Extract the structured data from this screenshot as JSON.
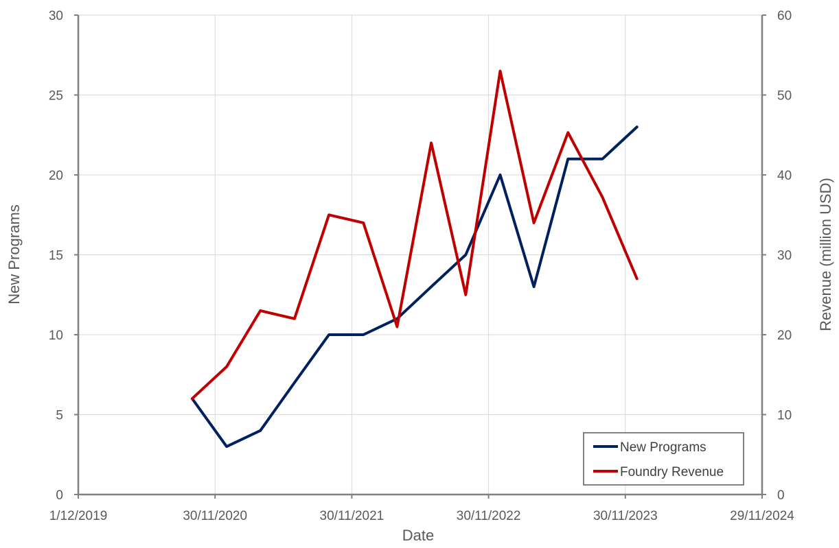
{
  "chart_data": {
    "type": "line",
    "xlabel": "Date",
    "ylabel": "New Programs",
    "y2label": "Revenue (million USD)",
    "xlim": [
      "2019-12-01",
      "2024-11-29"
    ],
    "x_ticks": [
      {
        "date": "2019-12-01",
        "label": "1/12/2019"
      },
      {
        "date": "2020-11-30",
        "label": "30/11/2020"
      },
      {
        "date": "2021-11-30",
        "label": "30/11/2021"
      },
      {
        "date": "2022-11-30",
        "label": "30/11/2022"
      },
      {
        "date": "2023-11-30",
        "label": "30/11/2023"
      },
      {
        "date": "2024-11-29",
        "label": "29/11/2024"
      }
    ],
    "ylim": [
      0,
      30
    ],
    "y_ticks": [
      0,
      5,
      10,
      15,
      20,
      25,
      30
    ],
    "y2lim": [
      0,
      60
    ],
    "y2_ticks": [
      0,
      10,
      20,
      30,
      40,
      50,
      60
    ],
    "grid": true,
    "legend_position": "bottom-right",
    "series": [
      {
        "name": "New Programs",
        "axis": "left",
        "color": "#002060",
        "x": [
          "2020-09-30",
          "2020-12-31",
          "2021-03-31",
          "2021-06-30",
          "2021-09-30",
          "2021-12-31",
          "2022-03-31",
          "2022-06-30",
          "2022-09-30",
          "2022-12-31",
          "2023-03-31",
          "2023-06-30",
          "2023-09-30",
          "2023-12-31"
        ],
        "values": [
          6,
          3,
          4,
          7,
          10,
          10,
          11,
          13,
          15,
          20,
          13,
          21,
          21,
          23
        ]
      },
      {
        "name": "Foundry Revenue",
        "axis": "right",
        "color": "#C00000",
        "x": [
          "2020-09-30",
          "2020-12-31",
          "2021-03-31",
          "2021-06-30",
          "2021-09-30",
          "2021-12-31",
          "2022-03-31",
          "2022-06-30",
          "2022-09-30",
          "2022-12-31",
          "2023-03-31",
          "2023-06-30",
          "2023-09-30",
          "2023-12-31"
        ],
        "values": [
          12,
          16,
          23,
          22,
          35,
          34,
          21,
          44,
          25,
          53,
          34,
          45.3,
          37.2,
          27
        ]
      }
    ]
  }
}
